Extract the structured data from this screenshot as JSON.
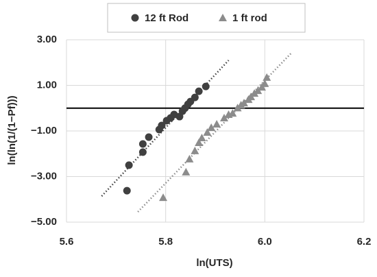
{
  "chart_data": {
    "type": "scatter",
    "x_label": "ln(UTS)",
    "y_label": "ln(ln(1/(1−Pf)))",
    "xlim": [
      5.6,
      6.2
    ],
    "xticks": [
      5.6,
      5.8,
      {
        "value": 6.0,
        "label": "6.0"
      },
      6.2
    ],
    "ylim": [
      -5,
      3
    ],
    "yticks": [
      {
        "value": 3,
        "label": "3.00"
      },
      {
        "value": 1,
        "label": "1.00"
      },
      {
        "value": -1,
        "label": "−1.00"
      },
      {
        "value": -3,
        "label": "−3.00"
      },
      {
        "value": -5,
        "label": "−5.00"
      }
    ],
    "grid": true,
    "reference_line_y": 0,
    "legend": "top",
    "series": [
      {
        "name": "12 ft Rod",
        "color": "#404040",
        "marker": "circle",
        "x": [
          5.722,
          5.726,
          5.754,
          5.754,
          5.766,
          5.787,
          5.792,
          5.802,
          5.81,
          5.817,
          5.828,
          5.834,
          5.839,
          5.845,
          5.85,
          5.859,
          5.867,
          5.881
        ],
        "values": [
          -3.62,
          -2.5,
          -1.93,
          -1.57,
          -1.27,
          -0.94,
          -0.76,
          -0.55,
          -0.43,
          -0.28,
          -0.37,
          -0.13,
          0.0,
          0.17,
          0.29,
          0.47,
          0.74,
          0.95
        ],
        "trendline": {
          "x": [
            5.671,
            5.927
          ],
          "values": [
            -3.86,
            2.1
          ]
        }
      },
      {
        "name": "1 ft rod",
        "color": "#8c8c8c",
        "marker": "triangle",
        "x": [
          5.795,
          5.841,
          5.848,
          5.859,
          5.867,
          5.873,
          5.884,
          5.892,
          5.903,
          5.918,
          5.927,
          5.935,
          5.945,
          5.952,
          5.958,
          5.967,
          5.972,
          5.979,
          5.986,
          5.994,
          6.0,
          6.004
        ],
        "values": [
          -3.92,
          -2.8,
          -2.23,
          -1.87,
          -1.51,
          -1.3,
          -1.06,
          -0.85,
          -0.7,
          -0.43,
          -0.28,
          -0.22,
          0.01,
          0.14,
          0.23,
          0.38,
          0.5,
          0.65,
          0.77,
          0.92,
          1.08,
          1.35
        ],
        "trendline": {
          "x": [
            5.744,
            6.054
          ],
          "values": [
            -4.55,
            2.43
          ]
        }
      }
    ]
  }
}
